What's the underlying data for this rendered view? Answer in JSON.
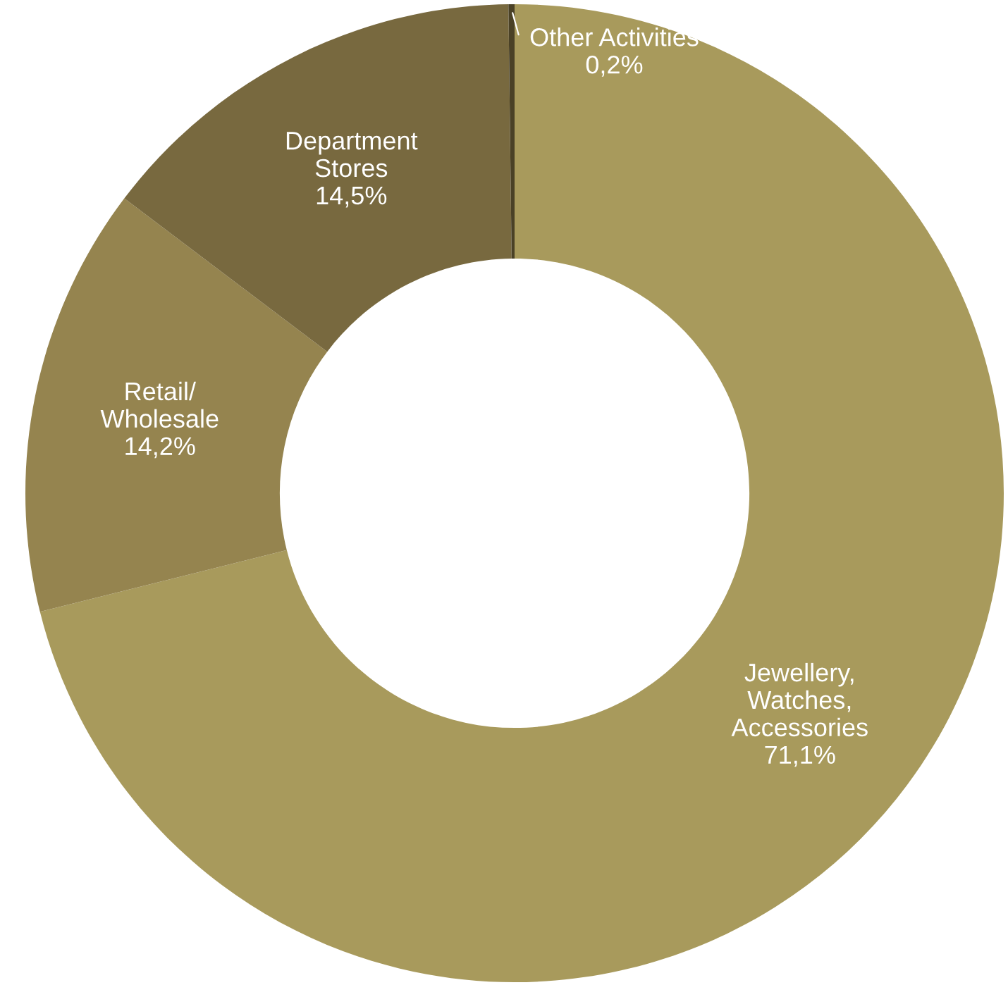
{
  "chart_data": {
    "type": "donut",
    "categories": [
      "Jewellery,\nWatches,\nAccessories",
      "Retail/\nWholesale",
      "Department\nStores",
      "Other Activities"
    ],
    "values": [
      71.1,
      14.2,
      14.5,
      0.2
    ],
    "value_labels": [
      "71,1%",
      "14,2%",
      "14,5%",
      "0,2%"
    ],
    "colors": [
      "#a89a5c",
      "#95844f",
      "#78693f",
      "#4a4126"
    ],
    "legend": false
  }
}
